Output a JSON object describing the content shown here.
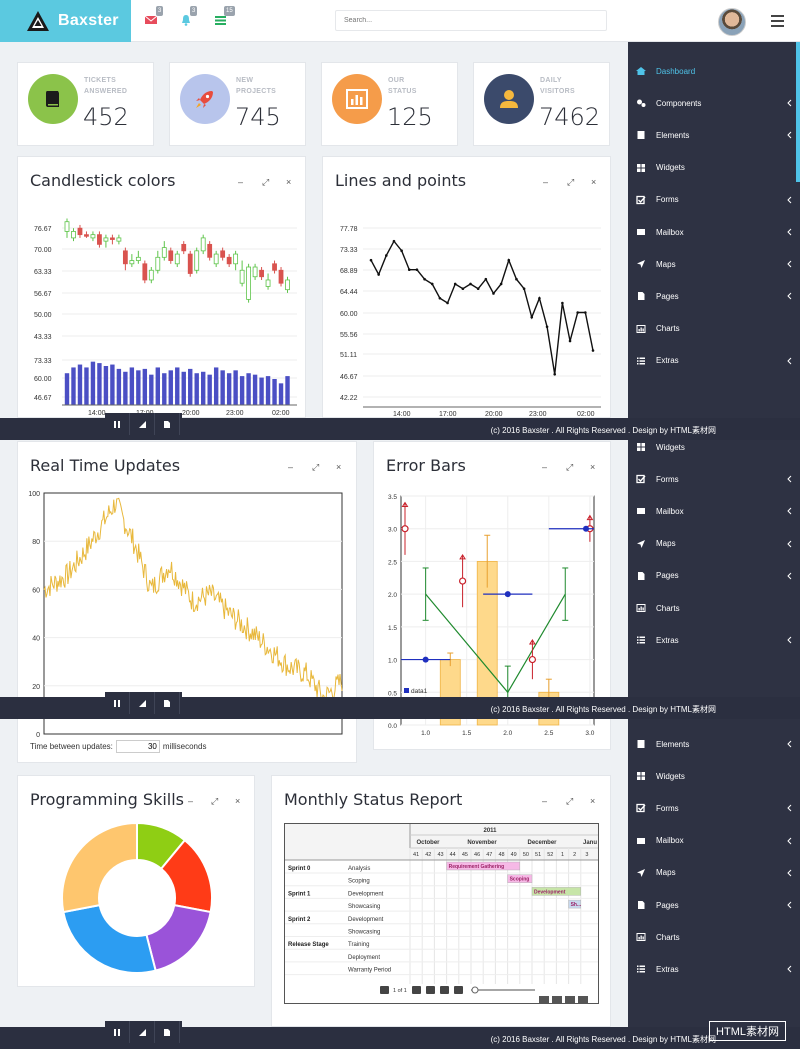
{
  "brand": {
    "name": "Baxster"
  },
  "topbar": {
    "badges": [
      "3",
      "3",
      "15"
    ],
    "search_placeholder": "Search..."
  },
  "stats": [
    {
      "label1": "TICKETS",
      "label2": "ANSWERED",
      "value": "452",
      "color": "#8bc34a"
    },
    {
      "label1": "NEW",
      "label2": "PROJECTS",
      "value": "745",
      "color": "#b8c5ec"
    },
    {
      "label1": "OUR",
      "label2": "STATUS",
      "value": "125",
      "color": "#f59c4a"
    },
    {
      "label1": "DAILY",
      "label2": "VISITORS",
      "value": "7462",
      "color": "#3b4a6b"
    }
  ],
  "sidebar": {
    "items": [
      "Dashboard",
      "Components",
      "Elements",
      "Widgets",
      "Forms",
      "Mailbox",
      "Maps",
      "Pages",
      "Charts",
      "Extras"
    ],
    "items_b": [
      "Widgets",
      "Forms",
      "Mailbox",
      "Maps",
      "Pages",
      "Charts",
      "Extras"
    ],
    "items_c": [
      "Elements",
      "Widgets",
      "Forms",
      "Mailbox",
      "Maps",
      "Pages",
      "Charts",
      "Extras"
    ]
  },
  "footer": {
    "text": "(c) 2016 Baxster . All Rights Reserved . Design by HTML素材网"
  },
  "panels": {
    "candlestick": "Candlestick colors",
    "lines": "Lines and points",
    "realtime": "Real Time Updates",
    "errorbars": "Error Bars",
    "skills": "Programming Skills",
    "monthly": "Monthly Status Report"
  },
  "panel_controls": [
    "–",
    "⤢",
    "×"
  ],
  "realtime": {
    "update_label": "Time between updates:",
    "update_value": "30",
    "update_unit": "milliseconds"
  },
  "chart_data": [
    {
      "type": "candlestick",
      "title": "Candlestick colors",
      "yticks_price": [
        "76.67",
        "70.00",
        "63.33",
        "56.67",
        "50.00",
        "43.33"
      ],
      "yticks_volume": [
        "73.33",
        "60.00",
        "46.67"
      ],
      "xticks": [
        "14:00",
        "17:00",
        "20:00",
        "23:00",
        "02:00"
      ],
      "ylim": [
        40,
        78
      ],
      "candles": [
        [
          72,
          75,
          76,
          70,
          "up"
        ],
        [
          70,
          72,
          73,
          69,
          "up"
        ],
        [
          73,
          71,
          74,
          70,
          "down"
        ],
        [
          71,
          70.5,
          72,
          70,
          "down"
        ],
        [
          70,
          71,
          72,
          69,
          "up"
        ],
        [
          71,
          68,
          72,
          67,
          "down"
        ],
        [
          69,
          70,
          71,
          67,
          "up"
        ],
        [
          70,
          69.5,
          71,
          68,
          "down"
        ],
        [
          69,
          70,
          71,
          68,
          "up"
        ],
        [
          66,
          62,
          67,
          60,
          "down"
        ],
        [
          62,
          63,
          65,
          61,
          "up"
        ],
        [
          63,
          64,
          66,
          62,
          "up"
        ],
        [
          62,
          57,
          63,
          56,
          "down"
        ],
        [
          57,
          60,
          61,
          56,
          "up"
        ],
        [
          60,
          64,
          66,
          59,
          "up"
        ],
        [
          64,
          67,
          69,
          63,
          "up"
        ],
        [
          66,
          63,
          67,
          62,
          "down"
        ],
        [
          62,
          65,
          66,
          61,
          "up"
        ],
        [
          68,
          66,
          69,
          65,
          "down"
        ],
        [
          65,
          59,
          66,
          58,
          "down"
        ],
        [
          60,
          66,
          67,
          59,
          "up"
        ],
        [
          66,
          70,
          71,
          65,
          "up"
        ],
        [
          68,
          64,
          69,
          63,
          "down"
        ],
        [
          62,
          65,
          66,
          61,
          "up"
        ],
        [
          66,
          64,
          67,
          63,
          "down"
        ],
        [
          64,
          62,
          65,
          61,
          "down"
        ],
        [
          62,
          65,
          66,
          60,
          "up"
        ],
        [
          56,
          60,
          63,
          55,
          "up"
        ],
        [
          61,
          51,
          62,
          50,
          "up"
        ],
        [
          58,
          61,
          62,
          57,
          "up"
        ],
        [
          60,
          58,
          61,
          57,
          "down"
        ],
        [
          55,
          57,
          59,
          54,
          "up"
        ],
        [
          62,
          60,
          63,
          59,
          "down"
        ],
        [
          60,
          56,
          61,
          55,
          "down"
        ],
        [
          54,
          57,
          58,
          53,
          "up"
        ]
      ],
      "volumes": [
        62,
        66,
        68,
        66,
        70,
        69,
        67,
        68,
        65,
        63,
        66,
        64,
        65,
        61,
        66,
        62,
        64,
        66,
        63,
        65,
        62,
        63,
        61,
        66,
        64,
        62,
        64,
        60,
        62,
        61,
        59,
        60,
        58,
        55,
        60
      ]
    },
    {
      "type": "line",
      "title": "Lines and points",
      "yticks": [
        "77.78",
        "73.33",
        "68.89",
        "64.44",
        "60.00",
        "55.56",
        "51.11",
        "46.67",
        "42.22"
      ],
      "xticks": [
        "14:00",
        "17:00",
        "20:00",
        "23:00",
        "02:00"
      ],
      "ylim": [
        40,
        80
      ],
      "values": [
        71,
        68,
        72,
        75,
        73,
        69,
        69,
        67,
        66,
        63,
        62,
        66,
        65,
        66,
        65,
        67,
        64,
        66,
        71,
        67,
        65,
        59,
        63,
        57,
        47,
        62,
        54,
        60,
        60,
        52
      ]
    },
    {
      "type": "line",
      "title": "Real Time Updates",
      "yticks": [
        "100",
        "80",
        "60",
        "40",
        "20",
        "0"
      ],
      "ylim": [
        0,
        100
      ]
    },
    {
      "type": "scatter",
      "title": "Error Bars",
      "yticks": [
        "3.5",
        "3.0",
        "2.5",
        "2.0",
        "1.5",
        "1.0",
        "0.5",
        "0.0"
      ],
      "xticks": [
        "1.0",
        "1.5",
        "2.0",
        "2.5",
        "3.0"
      ],
      "xlim": [
        0.7,
        3.05
      ],
      "ylim": [
        0,
        3.5
      ],
      "legend": "data1",
      "bars": [
        {
          "x": 1.3,
          "y": 1.0,
          "err": 0.1
        },
        {
          "x": 1.75,
          "y": 2.5,
          "err": 0.4
        },
        {
          "x": 2.5,
          "y": 0.5,
          "err": 0.2
        }
      ],
      "red_points": [
        {
          "x": 0.7,
          "y": 3.0,
          "err": 0.4
        },
        {
          "x": 1.45,
          "y": 2.2,
          "err": 0.4
        },
        {
          "x": 2.3,
          "y": 1.0,
          "err": 0.3
        },
        {
          "x": 3.0,
          "y": 3.0,
          "err": 0.2
        }
      ],
      "blue_points": [
        {
          "x": 1.0,
          "y": 1.0,
          "xerr": 0.3
        },
        {
          "x": 2.0,
          "y": 2.0,
          "xerr": 0.3
        },
        {
          "x": 3.0,
          "y": 3.0,
          "xerr": 0.5
        }
      ],
      "green_line": [
        {
          "x": 1.0,
          "y": 2.0
        },
        {
          "x": 2.0,
          "y": 0.5
        },
        {
          "x": 2.7,
          "y": 2.0
        }
      ]
    },
    {
      "type": "pie",
      "title": "Programming Skills",
      "slices": [
        {
          "value": 11,
          "color": "#8fce14"
        },
        {
          "value": 17,
          "color": "#ff3b17"
        },
        {
          "value": 18,
          "color": "#9a53d9"
        },
        {
          "value": 26,
          "color": "#2c9df2"
        },
        {
          "value": 28,
          "color": "#fec66e"
        }
      ]
    }
  ],
  "gantt": {
    "year": "2011",
    "months": [
      "October",
      "November",
      "December",
      "Janu"
    ],
    "weeks": [
      "41",
      "42",
      "43",
      "44",
      "45",
      "46",
      "47",
      "48",
      "49",
      "50",
      "51",
      "52",
      "1",
      "2",
      "3"
    ],
    "rows": [
      {
        "group": "Sprint 0",
        "task": "Analysis"
      },
      {
        "group": "",
        "task": "Scoping"
      },
      {
        "group": "Sprint 1",
        "task": "Development"
      },
      {
        "group": "",
        "task": "Showcasing"
      },
      {
        "group": "Sprint 2",
        "task": "Development"
      },
      {
        "group": "",
        "task": "Showcasing"
      },
      {
        "group": "Release Stage",
        "task": "Training"
      },
      {
        "group": "",
        "task": "Deployment"
      },
      {
        "group": "",
        "task": "Warranty Period"
      }
    ],
    "bars": [
      {
        "label": "Requirement Gathering",
        "row": 0,
        "start": 3,
        "span": 6,
        "color": "#f6b9e6"
      },
      {
        "label": "Scoping",
        "row": 1,
        "start": 8,
        "span": 2,
        "color": "#f6b9e6"
      },
      {
        "label": "Development",
        "row": 2,
        "start": 10,
        "span": 4,
        "color": "#c7e5a8"
      },
      {
        "label": "Sh...",
        "row": 3,
        "start": 13,
        "span": 1,
        "color": "#c9d9ee"
      }
    ],
    "pager": "1 of 1"
  },
  "watermark": "HTML素材网"
}
